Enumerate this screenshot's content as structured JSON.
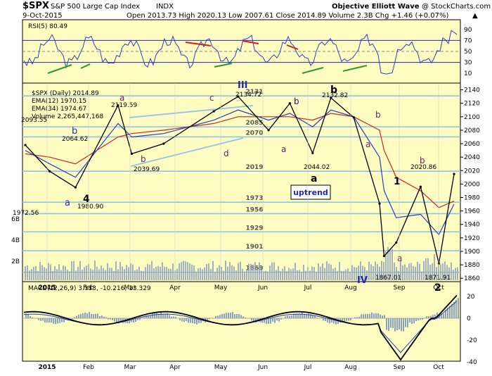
{
  "header": {
    "symbol": "$SPX",
    "name": "S&P 500 Large Cap Index",
    "exchange": "INDX",
    "date": "9-Oct-2015",
    "credit": "Objective Elliott Wave",
    "copyright": "@ StockCharts.com",
    "quote": "Open 2013.73  High 2020.13  Low 2007.61  Close 2014.89  Volume 2.3B  Chg +1.46 (+0.07%)",
    "quote_arrow": "▲"
  },
  "rsi_panel": {
    "label": "RSI(5) 80.49",
    "ticks": [
      "90",
      "70",
      "50",
      "30",
      "10"
    ]
  },
  "main_panel": {
    "legend": [
      "$SPX (Daily) 2014.89",
      "EMA(12) 1970.15",
      "EMA(34) 1974.67",
      "Volume 2,265,447,168"
    ],
    "legend_colors": [
      "#000000",
      "#1f3fbf",
      "#cc2222",
      "#5b6f9a"
    ],
    "price_ticks": [
      "2140",
      "2120",
      "2100",
      "2080",
      "2060",
      "2040",
      "2020",
      "2000",
      "1980",
      "1960",
      "1940",
      "1920",
      "1900",
      "1880",
      "1860"
    ],
    "volume_ticks": [
      "6B",
      "4B",
      "2B"
    ],
    "level_labels": [
      "2131",
      "2085",
      "2070",
      "2019",
      "1973",
      "1956",
      "1929",
      "1901",
      "1869"
    ],
    "price_labels": [
      "2093.55",
      "2064.62",
      "2119.59",
      "2134.72",
      "2132.82",
      "2039.69",
      "2044.02",
      "2020.86",
      "1972.56",
      "1980.90",
      "1867.01",
      "1871.91"
    ],
    "wave_labels_blue": [
      "III",
      "IV",
      "b",
      "a"
    ],
    "wave_labels_purple": [
      "a",
      "b",
      "c",
      "d",
      "a",
      "b",
      "a",
      "b",
      "a",
      "b",
      "b"
    ],
    "wave_labels_black": [
      "4",
      "b",
      "a",
      "1",
      "2"
    ],
    "uptrend_box": "uptrend"
  },
  "macd_panel": {
    "label": "MACD(12,26,9) 3.113, -10.216, 13.329",
    "ticks": [
      "20",
      "0",
      "-20",
      "-40"
    ]
  },
  "x_axis": {
    "labels": [
      "2015",
      "Feb",
      "Mar",
      "Apr",
      "May",
      "Jun",
      "Jul",
      "Aug",
      "Sep",
      "Oct"
    ]
  },
  "colors": {
    "panel_bg": "#fffcc2",
    "level_line": "#8fc3e6",
    "ema12": "#1f3fbf",
    "ema34": "#cc2222",
    "volume": "#8a9fbd",
    "rsi_line": "#2a3fbf",
    "macd_hist": "#8a9fbd",
    "trend_green": "#2a9a2a",
    "trend_red": "#cc2222"
  },
  "chart_data": {
    "type": "line",
    "title": "$SPX S&P 500 Large Cap Index INDX",
    "x": [
      "2014-12-31",
      "2015-01-16",
      "2015-02-02",
      "2015-03-02",
      "2015-03-11",
      "2015-04-01",
      "2015-05-04",
      "2015-05-20",
      "2015-06-09",
      "2015-06-23",
      "2015-07-08",
      "2015-07-20",
      "2015-08-04",
      "2015-08-21",
      "2015-08-24",
      "2015-09-01",
      "2015-09-17",
      "2015-09-29",
      "2015-10-09"
    ],
    "series": [
      {
        "name": "$SPX (Daily)",
        "values": [
          2058,
          2019,
          1995,
          2117,
          2045,
          2060,
          2108,
          2130,
          2080,
          2120,
          2046,
          2128,
          2099,
          1971,
          1893,
          1913,
          1996,
          1882,
          2014.89
        ]
      },
      {
        "name": "EMA(12)",
        "values": [
          2050,
          2030,
          2010,
          2090,
          2070,
          2075,
          2095,
          2110,
          2095,
          2105,
          2085,
          2110,
          2100,
          2040,
          1990,
          1950,
          1955,
          1925,
          1970.15
        ]
      },
      {
        "name": "EMA(34)",
        "values": [
          2045,
          2040,
          2030,
          2070,
          2075,
          2080,
          2090,
          2100,
          2100,
          2100,
          2095,
          2105,
          2100,
          2080,
          2050,
          2010,
          1990,
          1965,
          1974.67
        ]
      }
    ],
    "ylim": [
      1855,
      2150
    ],
    "levels": [
      2131,
      2085,
      2070,
      2019,
      1973,
      1956,
      1929,
      1901,
      1869
    ],
    "grid": true
  }
}
